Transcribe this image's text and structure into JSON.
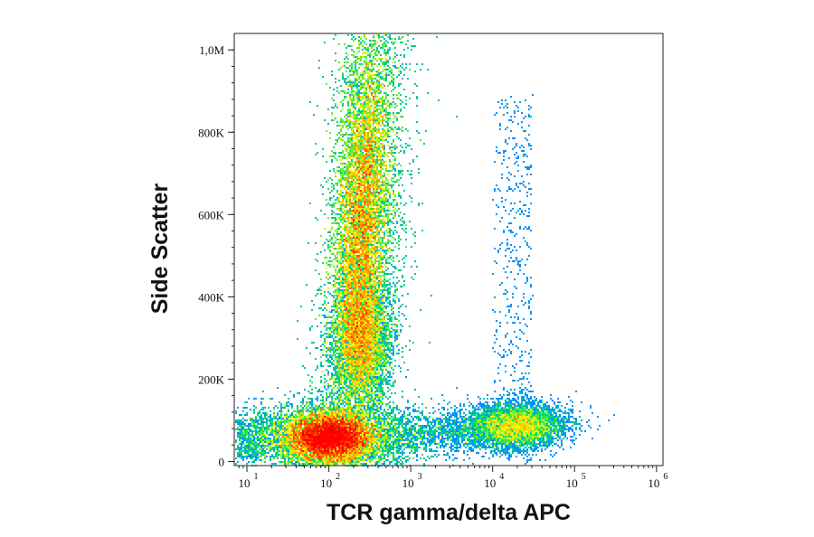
{
  "chart_data": {
    "type": "scatter",
    "subtype": "flow-cytometry-density-dot-plot",
    "title": "",
    "xlabel": "TCR gamma/delta APC",
    "ylabel": "Side Scatter",
    "x_scale": "log",
    "y_scale": "linear",
    "xlim": [
      7,
      1200000
    ],
    "ylim": [
      -10000,
      1040000
    ],
    "x_ticks": [
      {
        "value": 10,
        "base": "10",
        "exp": "1"
      },
      {
        "value": 100,
        "base": "10",
        "exp": "2"
      },
      {
        "value": 1000,
        "base": "10",
        "exp": "3"
      },
      {
        "value": 10000,
        "base": "10",
        "exp": "4"
      },
      {
        "value": 100000,
        "base": "10",
        "exp": "5"
      },
      {
        "value": 1000000,
        "base": "10",
        "exp": "6"
      }
    ],
    "y_ticks": [
      {
        "value": 0,
        "label": "0"
      },
      {
        "value": 200000,
        "label": "200K"
      },
      {
        "value": 400000,
        "label": "400K"
      },
      {
        "value": 600000,
        "label": "600K"
      },
      {
        "value": 800000,
        "label": "800K"
      },
      {
        "value": 1000000,
        "label": "1,0M"
      }
    ],
    "populations": [
      {
        "description": "TCR gamma/delta negative, low side scatter (lymphocytes)",
        "x_center": 100,
        "y_center": 60000,
        "density": "highest"
      },
      {
        "description": "TCR gamma/delta negative, mid side scatter (monocytes)",
        "x_center": 250,
        "y_center": 300000,
        "density": "high"
      },
      {
        "description": "TCR gamma/delta negative, high side scatter (granulocytes)",
        "x_center": 250,
        "y_center": 620000,
        "density": "high"
      },
      {
        "description": "TCR gamma/delta positive, low side scatter",
        "x_center": 20000,
        "y_center": 90000,
        "density": "medium"
      }
    ],
    "color_scale": [
      "#0000cc",
      "#00a0ff",
      "#00e060",
      "#ffff00",
      "#ff8000",
      "#ff0000"
    ],
    "grid": false,
    "legend": "none"
  }
}
